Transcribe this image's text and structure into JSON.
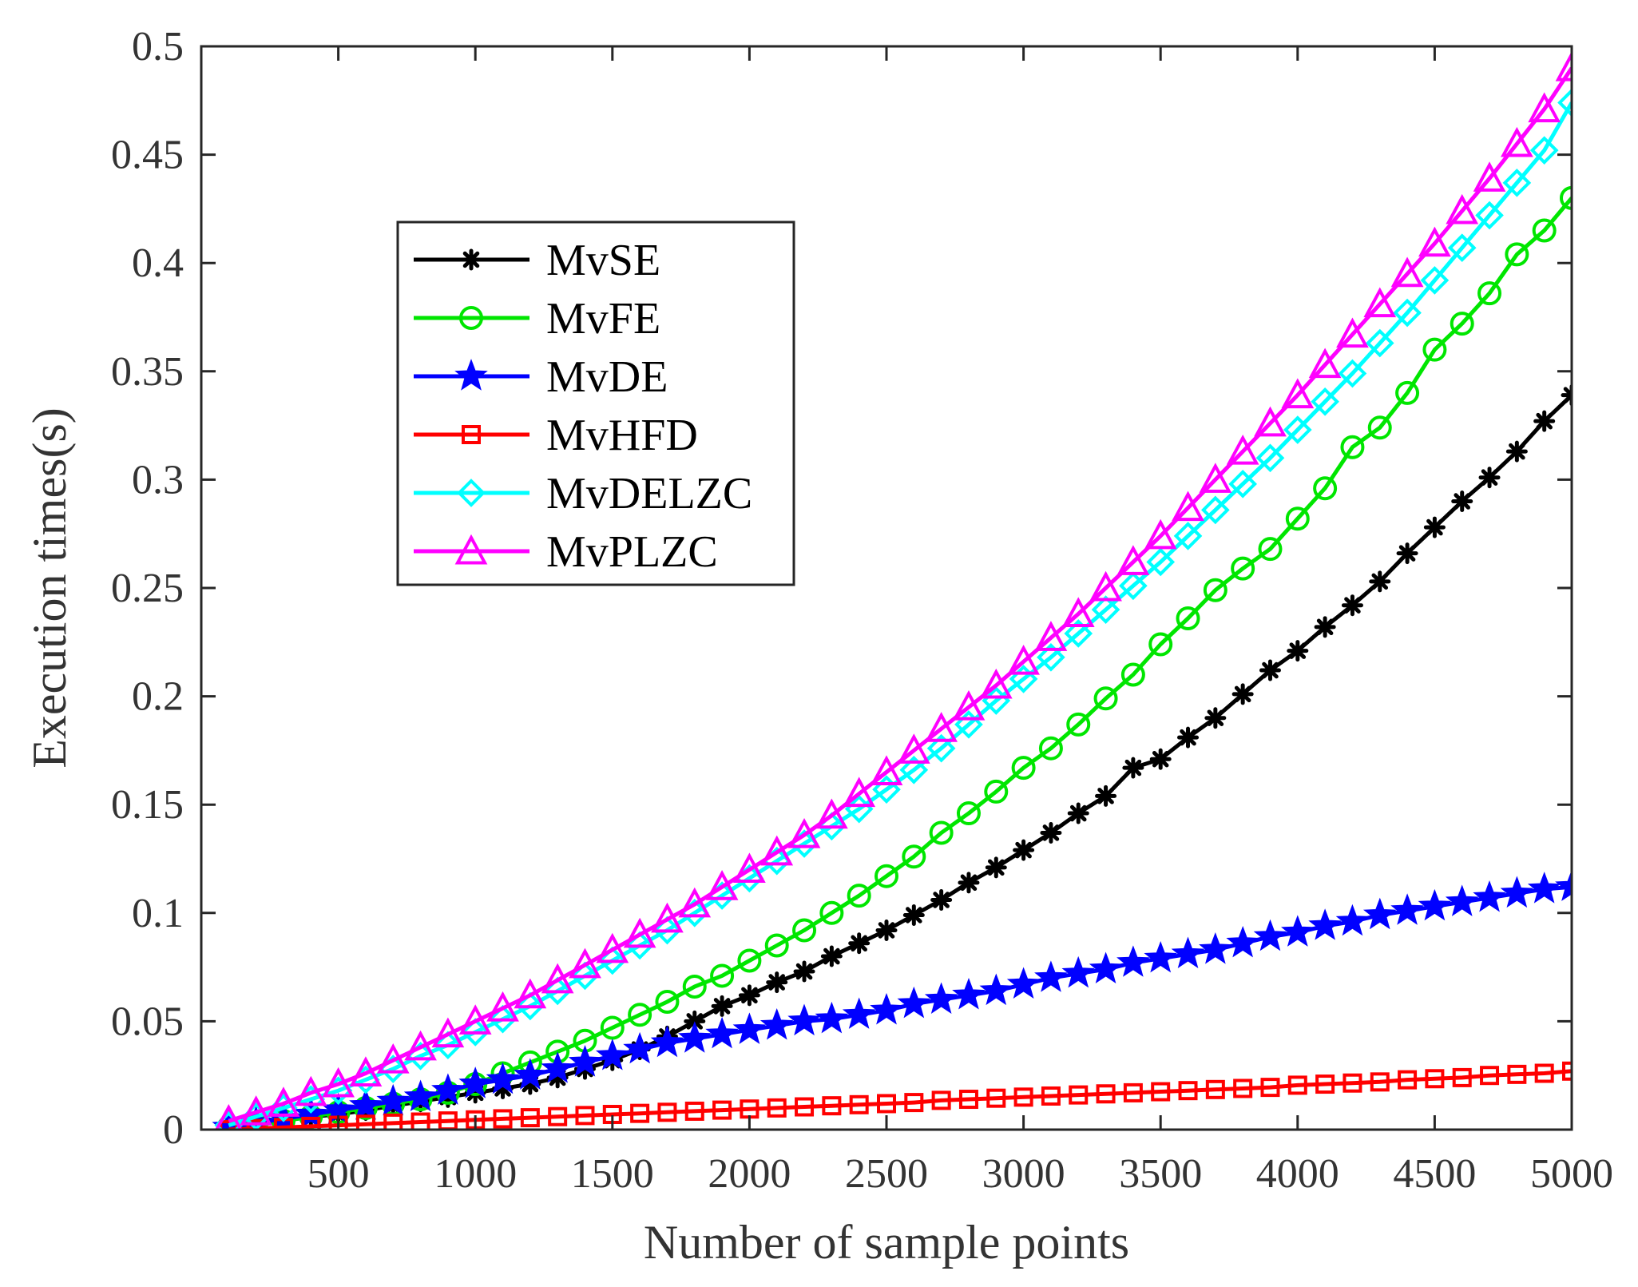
{
  "chart_data": {
    "type": "line",
    "title": "",
    "xlabel": "Number of sample points",
    "ylabel": "Execution times(s)",
    "xlim": [
      0,
      5000
    ],
    "ylim": [
      0,
      0.5
    ],
    "xticks": [
      500,
      1000,
      1500,
      2000,
      2500,
      3000,
      3500,
      4000,
      4500,
      5000
    ],
    "xtick_labels": [
      "500",
      "1000",
      "1500",
      "2000",
      "2500",
      "3000",
      "3500",
      "4000",
      "4500",
      "5000"
    ],
    "yticks": [
      0,
      0.05,
      0.1,
      0.15,
      0.2,
      0.25,
      0.3,
      0.35,
      0.4,
      0.45,
      0.5
    ],
    "ytick_labels": [
      "0",
      "0.05",
      "0.1",
      "0.15",
      "0.2",
      "0.25",
      "0.3",
      "0.35",
      "0.4",
      "0.45",
      "0.5"
    ],
    "grid": false,
    "legend_position": "upper-left",
    "x": [
      100,
      200,
      300,
      400,
      500,
      600,
      700,
      800,
      900,
      1000,
      1100,
      1200,
      1300,
      1400,
      1500,
      1600,
      1700,
      1800,
      1900,
      2000,
      2100,
      2200,
      2300,
      2400,
      2500,
      2600,
      2700,
      2800,
      2900,
      3000,
      3100,
      3200,
      3300,
      3400,
      3500,
      3600,
      3700,
      3800,
      3900,
      4000,
      4100,
      4200,
      4300,
      4400,
      4500,
      4600,
      4700,
      4800,
      4900,
      5000
    ],
    "series": [
      {
        "name": "MvSE",
        "color": "#000000",
        "marker": "asterisk",
        "values": [
          0.001,
          0.003,
          0.004,
          0.006,
          0.007,
          0.009,
          0.011,
          0.013,
          0.015,
          0.017,
          0.019,
          0.021,
          0.024,
          0.028,
          0.032,
          0.037,
          0.043,
          0.05,
          0.057,
          0.062,
          0.068,
          0.073,
          0.08,
          0.086,
          0.092,
          0.099,
          0.106,
          0.114,
          0.121,
          0.129,
          0.137,
          0.146,
          0.154,
          0.167,
          0.171,
          0.181,
          0.19,
          0.201,
          0.212,
          0.221,
          0.232,
          0.242,
          0.253,
          0.266,
          0.278,
          0.29,
          0.301,
          0.313,
          0.327,
          0.339
        ]
      },
      {
        "name": "MvFE",
        "color": "#00e600",
        "marker": "circle",
        "values": [
          0.001,
          0.002,
          0.004,
          0.006,
          0.008,
          0.01,
          0.012,
          0.014,
          0.017,
          0.021,
          0.026,
          0.031,
          0.036,
          0.041,
          0.047,
          0.053,
          0.059,
          0.066,
          0.071,
          0.078,
          0.085,
          0.092,
          0.1,
          0.108,
          0.117,
          0.126,
          0.137,
          0.146,
          0.156,
          0.167,
          0.176,
          0.187,
          0.199,
          0.21,
          0.224,
          0.236,
          0.249,
          0.259,
          0.268,
          0.282,
          0.296,
          0.315,
          0.324,
          0.34,
          0.36,
          0.372,
          0.386,
          0.404,
          0.415,
          0.43
        ]
      },
      {
        "name": "MvDE",
        "color": "#0000ff",
        "marker": "star",
        "values": [
          0.001,
          0.003,
          0.005,
          0.007,
          0.009,
          0.011,
          0.013,
          0.015,
          0.018,
          0.021,
          0.023,
          0.025,
          0.028,
          0.031,
          0.034,
          0.037,
          0.04,
          0.042,
          0.044,
          0.046,
          0.048,
          0.05,
          0.051,
          0.053,
          0.055,
          0.058,
          0.06,
          0.062,
          0.064,
          0.067,
          0.07,
          0.072,
          0.074,
          0.077,
          0.079,
          0.081,
          0.083,
          0.086,
          0.089,
          0.091,
          0.094,
          0.096,
          0.099,
          0.101,
          0.103,
          0.105,
          0.107,
          0.109,
          0.111,
          0.112
        ]
      },
      {
        "name": "MvHFD",
        "color": "#ff0000",
        "marker": "square",
        "values": [
          0.0,
          0.0005,
          0.001,
          0.0015,
          0.002,
          0.0025,
          0.003,
          0.0035,
          0.004,
          0.0045,
          0.005,
          0.0055,
          0.006,
          0.0065,
          0.007,
          0.0075,
          0.008,
          0.0085,
          0.009,
          0.0095,
          0.01,
          0.0105,
          0.011,
          0.0115,
          0.012,
          0.0125,
          0.0135,
          0.014,
          0.0145,
          0.015,
          0.0155,
          0.016,
          0.0165,
          0.017,
          0.0175,
          0.018,
          0.0185,
          0.019,
          0.0195,
          0.0205,
          0.021,
          0.0215,
          0.022,
          0.023,
          0.0235,
          0.024,
          0.025,
          0.0255,
          0.026,
          0.027
        ]
      },
      {
        "name": "MvDELZC",
        "color": "#00ffff",
        "marker": "diamond",
        "values": [
          0.002,
          0.006,
          0.01,
          0.014,
          0.018,
          0.023,
          0.028,
          0.034,
          0.039,
          0.045,
          0.051,
          0.057,
          0.064,
          0.071,
          0.078,
          0.085,
          0.092,
          0.1,
          0.108,
          0.116,
          0.124,
          0.132,
          0.14,
          0.148,
          0.157,
          0.166,
          0.176,
          0.187,
          0.198,
          0.208,
          0.218,
          0.229,
          0.24,
          0.251,
          0.262,
          0.274,
          0.286,
          0.298,
          0.31,
          0.323,
          0.336,
          0.349,
          0.363,
          0.377,
          0.392,
          0.407,
          0.422,
          0.437,
          0.452,
          0.474
        ]
      },
      {
        "name": "MvPLZC",
        "color": "#ff00ff",
        "marker": "triangle",
        "values": [
          0.004,
          0.008,
          0.012,
          0.017,
          0.021,
          0.026,
          0.032,
          0.038,
          0.044,
          0.05,
          0.056,
          0.062,
          0.069,
          0.076,
          0.083,
          0.09,
          0.097,
          0.104,
          0.112,
          0.12,
          0.128,
          0.136,
          0.145,
          0.155,
          0.165,
          0.175,
          0.185,
          0.195,
          0.205,
          0.216,
          0.227,
          0.238,
          0.25,
          0.262,
          0.274,
          0.287,
          0.3,
          0.313,
          0.326,
          0.339,
          0.353,
          0.367,
          0.381,
          0.395,
          0.409,
          0.424,
          0.439,
          0.455,
          0.471,
          0.49
        ]
      }
    ]
  }
}
